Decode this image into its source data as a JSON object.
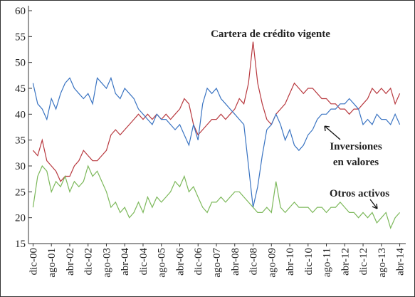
{
  "chart_data": {
    "type": "line",
    "annotations": [
      "Cartera de crédito vigente",
      "Inversiones",
      "en valores",
      "Otros activos"
    ],
    "x": [
      0,
      2,
      4,
      6,
      8,
      10,
      12,
      14,
      16,
      18,
      20,
      22,
      24,
      26,
      28,
      30,
      32,
      34,
      36,
      38,
      40,
      42,
      44,
      46,
      48,
      50,
      52,
      54,
      56,
      58,
      60,
      62,
      64,
      66,
      68,
      70,
      72,
      74,
      76,
      78,
      80,
      82,
      84,
      86,
      88,
      90,
      92,
      94,
      96,
      98,
      100,
      102,
      104,
      106,
      108,
      110,
      112,
      114,
      116,
      118,
      120,
      122,
      124,
      126,
      128,
      130,
      132,
      134,
      136,
      138,
      140,
      142,
      144,
      146,
      148,
      150,
      152,
      154,
      156,
      158,
      160
    ],
    "series": [
      {
        "name": "Cartera de crédito vigente",
        "color": "#b8393f",
        "values": [
          33,
          32,
          35,
          31,
          30,
          29,
          27,
          28,
          28,
          30,
          31,
          33,
          32,
          31,
          31,
          32,
          33,
          36,
          37,
          36,
          37,
          38,
          39,
          40,
          39,
          40,
          39,
          40,
          39,
          40,
          39,
          40,
          41,
          43,
          42,
          38,
          36,
          37,
          38,
          39,
          39,
          40,
          39,
          40,
          41,
          43,
          42,
          46,
          54,
          46,
          42,
          39,
          38,
          40,
          41,
          42,
          44,
          46,
          45,
          44,
          45,
          45,
          44,
          43,
          43,
          42,
          42,
          41,
          41,
          40,
          41,
          41,
          42,
          43,
          45,
          44,
          45,
          44,
          45,
          42,
          44
        ]
      },
      {
        "name": "Inversiones en valores",
        "color": "#3a74c2",
        "values": [
          46,
          42,
          41,
          39,
          43,
          41,
          44,
          46,
          47,
          45,
          44,
          43,
          44,
          42,
          47,
          46,
          45,
          47,
          44,
          43,
          45,
          44,
          43,
          41,
          40,
          39,
          38,
          40,
          39,
          39,
          38,
          37,
          38,
          36,
          34,
          38,
          35,
          42,
          45,
          44,
          45,
          43,
          42,
          41,
          40,
          39,
          38,
          30,
          22,
          26,
          32,
          37,
          38,
          40,
          38,
          35,
          37,
          34,
          33,
          34,
          36,
          37,
          39,
          40,
          40,
          41,
          41,
          42,
          42,
          43,
          42,
          41,
          38,
          39,
          38,
          40,
          39,
          39,
          38,
          40,
          38
        ]
      },
      {
        "name": "Otros activos",
        "color": "#7cb85a",
        "values": [
          22,
          28,
          30,
          29,
          25,
          27,
          26,
          28,
          25,
          27,
          26,
          27,
          30,
          28,
          29,
          27,
          25,
          22,
          23,
          21,
          22,
          20,
          21,
          23,
          21,
          24,
          22,
          24,
          23,
          24,
          25,
          27,
          26,
          28,
          25,
          26,
          24,
          22,
          21,
          23,
          23,
          24,
          23,
          24,
          25,
          25,
          24,
          23,
          22,
          21,
          21,
          22,
          21,
          27,
          22,
          21,
          22,
          23,
          22,
          22,
          22,
          21,
          22,
          22,
          21,
          22,
          22,
          23,
          22,
          21,
          21,
          20,
          21,
          20,
          21,
          19,
          20,
          21,
          18,
          20,
          21
        ]
      }
    ],
    "xlim": [
      -2,
      162
    ],
    "xticks": [
      {
        "value": 0,
        "label": "dic-00"
      },
      {
        "value": 8,
        "label": "ago-01"
      },
      {
        "value": 16,
        "label": "abr-02"
      },
      {
        "value": 24,
        "label": "dic-02"
      },
      {
        "value": 32,
        "label": "ago-03"
      },
      {
        "value": 40,
        "label": "abr-04"
      },
      {
        "value": 48,
        "label": "dic-04"
      },
      {
        "value": 56,
        "label": "ago-05"
      },
      {
        "value": 64,
        "label": "abr-06"
      },
      {
        "value": 72,
        "label": "dic-06"
      },
      {
        "value": 80,
        "label": "ago-07"
      },
      {
        "value": 88,
        "label": "abr-08"
      },
      {
        "value": 96,
        "label": "dic-08"
      },
      {
        "value": 104,
        "label": "ago-09"
      },
      {
        "value": 112,
        "label": "abr-10"
      },
      {
        "value": 120,
        "label": "dic-10"
      },
      {
        "value": 128,
        "label": "ago-11"
      },
      {
        "value": 136,
        "label": "abr-12"
      },
      {
        "value": 144,
        "label": "dic-12"
      },
      {
        "value": 152,
        "label": "ago-13"
      },
      {
        "value": 160,
        "label": "abr-14"
      }
    ],
    "ylim": [
      15,
      60
    ],
    "yticks": [
      15,
      20,
      25,
      30,
      35,
      40,
      45,
      50,
      55,
      60
    ]
  }
}
